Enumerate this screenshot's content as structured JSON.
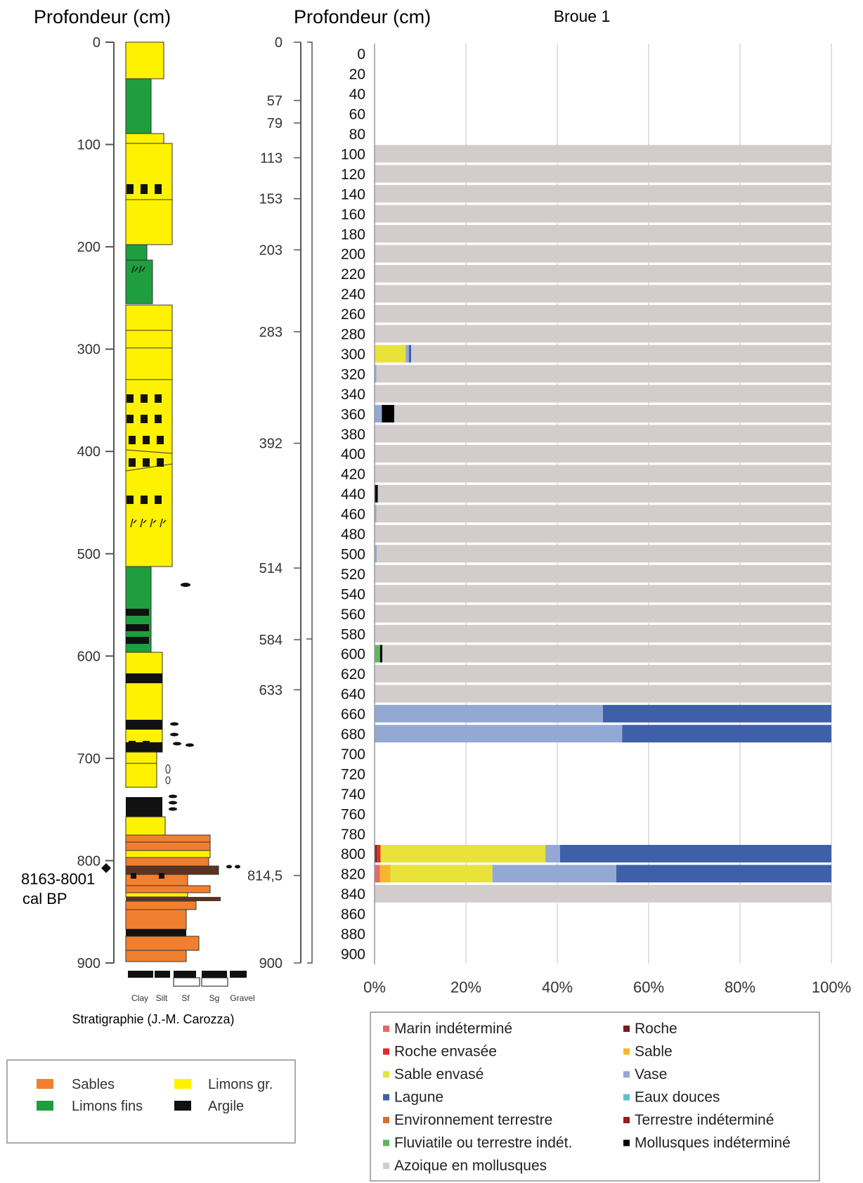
{
  "stratigraphy": {
    "axis_title": "Profondeur (cm)",
    "ticks": [
      "0",
      "100",
      "200",
      "300",
      "400",
      "500",
      "600",
      "700",
      "800",
      "900"
    ],
    "grain_labels": [
      "Clay",
      "Silt",
      "Sf",
      "Sg",
      "Gravel"
    ],
    "caption": "Stratigraphie (J.-M. Carozza)",
    "date_label_1": "8163-8001",
    "date_label_2": "cal BP",
    "legend": [
      {
        "label": "Sables",
        "color": "#F08030"
      },
      {
        "label": "Limons gr.",
        "color": "#FFF200"
      },
      {
        "label": "Limons fins",
        "color": "#1E9E3E"
      },
      {
        "label": "Argile",
        "color": "#111111"
      }
    ]
  },
  "samples": {
    "axis_title": "Profondeur (cm)",
    "ticks": [
      "0",
      "57",
      "79",
      "113",
      "153",
      "203",
      "283",
      "392",
      "514",
      "584",
      "633",
      "814,5",
      "900"
    ]
  },
  "chart_data": {
    "type": "bar",
    "orientation": "horizontal",
    "stacked": "percent",
    "title": "Broue 1",
    "categories": [
      "0",
      "20",
      "40",
      "60",
      "80",
      "100",
      "120",
      "140",
      "160",
      "180",
      "200",
      "220",
      "240",
      "260",
      "280",
      "300",
      "320",
      "340",
      "360",
      "380",
      "400",
      "420",
      "440",
      "460",
      "480",
      "500",
      "520",
      "540",
      "560",
      "580",
      "600",
      "620",
      "640",
      "660",
      "680",
      "700",
      "720",
      "740",
      "760",
      "780",
      "800",
      "820",
      "840",
      "860",
      "880",
      "900"
    ],
    "x_ticks": [
      "0%",
      "20%",
      "40%",
      "60%",
      "80%",
      "100%"
    ],
    "xlim": [
      0,
      100
    ],
    "grid": "vertical",
    "legend_position": "bottom",
    "series": [
      {
        "name": "Marin indéterminé",
        "color": "#E8676B",
        "values": [
          0,
          0,
          0,
          0,
          0,
          0,
          0,
          0,
          0,
          0,
          0,
          0,
          0,
          0,
          0,
          0,
          0,
          0,
          0,
          0,
          0,
          0,
          0,
          0,
          0,
          0,
          0,
          0,
          0,
          0,
          0,
          0,
          0,
          0,
          0,
          0,
          0,
          0,
          0,
          0,
          0,
          1.2,
          0,
          0,
          0,
          0
        ]
      },
      {
        "name": "Roche",
        "color": "#7A1B1B",
        "values": [
          0,
          0,
          0,
          0,
          0,
          0,
          0,
          0,
          0,
          0,
          0,
          0,
          0,
          0,
          0,
          0,
          0,
          0,
          0,
          0,
          0,
          0,
          0,
          0,
          0,
          0,
          0,
          0,
          0,
          0,
          0,
          0,
          0,
          0,
          0,
          0,
          0,
          0,
          0,
          0,
          0.5,
          0,
          0,
          0,
          0,
          0
        ]
      },
      {
        "name": "Roche envasée",
        "color": "#E32B2B",
        "values": [
          0,
          0,
          0,
          0,
          0,
          0,
          0,
          0,
          0,
          0,
          0,
          0,
          0,
          0,
          0,
          0,
          0,
          0,
          0,
          0,
          0,
          0,
          0,
          0,
          0,
          0,
          0,
          0,
          0,
          0,
          0,
          0,
          0,
          0,
          0,
          0,
          0,
          0,
          0,
          0,
          0.8,
          0,
          0,
          0,
          0,
          0
        ]
      },
      {
        "name": "Sable",
        "color": "#F7B72A",
        "values": [
          0,
          0,
          0,
          0,
          0,
          0,
          0,
          0,
          0,
          0,
          0,
          0,
          0,
          0,
          0,
          0,
          0,
          0,
          0,
          0,
          0,
          0,
          0,
          0,
          0,
          0,
          0,
          0,
          0,
          0,
          0,
          0,
          0,
          0,
          0,
          0,
          0,
          0,
          0,
          0,
          0,
          2.3,
          0,
          0,
          0,
          0
        ]
      },
      {
        "name": "Sable envasé",
        "color": "#E8E23A",
        "values": [
          0,
          0,
          0,
          0,
          0,
          0,
          0,
          0,
          0,
          0,
          0,
          0,
          0,
          0,
          0,
          6.8,
          0,
          0,
          0,
          0,
          0,
          0,
          0,
          0,
          0,
          0,
          0,
          0,
          0,
          0,
          0,
          0,
          0,
          0,
          0,
          0,
          0,
          0,
          0,
          0,
          36.1,
          22.3,
          0,
          0,
          0,
          0
        ]
      },
      {
        "name": "Vase",
        "color": "#93A9D3",
        "values": [
          0,
          0,
          0,
          0,
          0,
          0,
          0,
          0,
          0,
          0,
          0,
          0,
          0,
          0,
          0,
          0.7,
          0.4,
          0,
          1.6,
          0,
          0,
          0,
          0,
          0.4,
          0,
          0.5,
          0,
          0,
          0,
          0,
          0,
          0,
          0,
          50,
          54.2,
          0,
          0,
          0,
          0,
          0,
          3.2,
          27.1,
          0,
          0,
          0,
          0
        ]
      },
      {
        "name": "Lagune",
        "color": "#3F5FA8",
        "values": [
          0,
          0,
          0,
          0,
          0,
          0,
          0,
          0,
          0,
          0,
          0,
          0,
          0,
          0,
          0,
          0.5,
          0,
          0,
          0,
          0,
          0,
          0,
          0,
          0,
          0,
          0,
          0,
          0,
          0,
          0,
          0,
          0,
          0,
          50,
          45.8,
          0,
          0,
          0,
          0,
          0,
          59.4,
          47.1,
          0,
          0,
          0,
          0
        ]
      },
      {
        "name": "Eaux douces",
        "color": "#5CC3C8",
        "values": [
          0,
          0,
          0,
          0,
          0,
          0,
          0,
          0,
          0,
          0,
          0,
          0,
          0,
          0,
          0,
          0,
          0,
          0,
          0,
          0,
          0,
          0,
          0,
          0,
          0,
          0,
          0,
          0,
          0,
          0,
          0,
          0,
          0,
          0,
          0,
          0,
          0,
          0,
          0,
          0,
          0,
          0,
          0,
          0,
          0,
          0
        ]
      },
      {
        "name": "Environnement terrestre",
        "color": "#D8702C",
        "values": [
          0,
          0,
          0,
          0,
          0,
          0,
          0,
          0,
          0,
          0,
          0,
          0,
          0,
          0,
          0,
          0,
          0,
          0,
          0,
          0,
          0,
          0,
          0,
          0,
          0,
          0,
          0,
          0,
          0,
          0,
          0,
          0,
          0,
          0,
          0,
          0,
          0,
          0,
          0,
          0,
          0,
          0,
          0,
          0,
          0,
          0
        ]
      },
      {
        "name": "Terrestre indéterminé",
        "color": "#9B1C1C",
        "values": [
          0,
          0,
          0,
          0,
          0,
          0,
          0,
          0,
          0,
          0,
          0,
          0,
          0,
          0,
          0,
          0,
          0,
          0,
          0,
          0,
          0,
          0,
          0,
          0,
          0,
          0,
          0,
          0,
          0,
          0,
          0,
          0,
          0,
          0,
          0,
          0,
          0,
          0,
          0,
          0,
          0,
          0,
          0,
          0,
          0,
          0
        ]
      },
      {
        "name": "Fluviatile ou terrestre indét.",
        "color": "#5CB85C",
        "values": [
          0,
          0,
          0,
          0,
          0,
          0,
          0,
          0,
          0,
          0,
          0,
          0,
          0,
          0,
          0,
          0,
          0,
          0,
          0,
          0,
          0,
          0,
          0,
          0,
          0,
          0,
          0,
          0,
          0,
          0,
          1.2,
          0,
          0,
          0,
          0,
          0,
          0,
          0,
          0,
          0,
          0,
          0,
          0,
          0,
          0,
          0
        ]
      },
      {
        "name": "Mollusques indéterminé",
        "color": "#000000",
        "values": [
          0,
          0,
          0,
          0,
          0,
          0,
          0,
          0,
          0,
          0,
          0,
          0,
          0,
          0,
          0,
          0,
          0,
          0,
          2.7,
          0,
          0,
          0,
          0.7,
          0,
          0,
          0,
          0,
          0,
          0,
          0,
          0.5,
          0,
          0,
          0,
          0,
          0,
          0,
          0,
          0,
          0,
          0,
          0,
          0,
          0,
          0,
          0
        ]
      },
      {
        "name": "Azoique en mollusques",
        "color": "#D3CCCC",
        "values": [
          0,
          0,
          0,
          0,
          0,
          100,
          100,
          100,
          100,
          100,
          100,
          100,
          100,
          100,
          100,
          92,
          99.6,
          100,
          95.7,
          100,
          100,
          100,
          99.3,
          99.6,
          100,
          99.5,
          100,
          100,
          100,
          100,
          98.3,
          100,
          100,
          0,
          0,
          0,
          0,
          0,
          0,
          0,
          0,
          0,
          100,
          0,
          0,
          0
        ]
      }
    ]
  }
}
